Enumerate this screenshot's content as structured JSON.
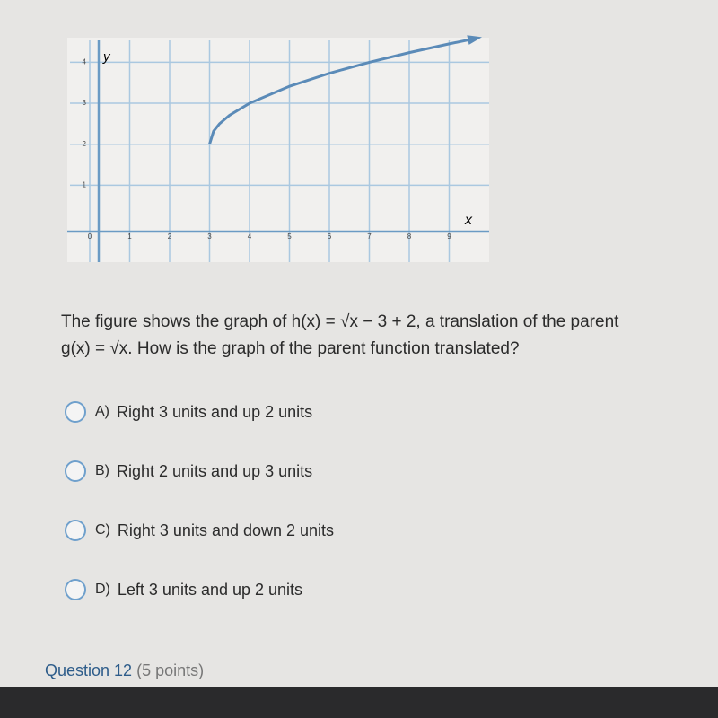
{
  "graph": {
    "x_label": "x",
    "y_label": "y",
    "xlim": [
      0,
      10
    ],
    "ylim": [
      0,
      4.6
    ],
    "xticks": [
      0,
      1,
      2,
      3,
      4,
      5,
      6,
      7,
      8,
      9
    ],
    "yticks": [
      1,
      2,
      3,
      4
    ],
    "curve": {
      "x": [
        3,
        3.1,
        3.25,
        3.5,
        4,
        5,
        6,
        7,
        8,
        9,
        9.6
      ],
      "y": [
        2,
        2.316,
        2.5,
        2.707,
        3,
        3.414,
        3.732,
        4,
        4.236,
        4.449,
        4.569
      ]
    }
  },
  "question": {
    "line1": "The figure shows the graph of h(x) = √x − 3 + 2, a translation of the parent",
    "line2": "g(x) = √x. How is the graph of the parent function translated?"
  },
  "options": [
    {
      "letter": "A)",
      "text": "Right 3 units and up 2 units"
    },
    {
      "letter": "B)",
      "text": "Right 2 units and up 3 units"
    },
    {
      "letter": "C)",
      "text": "Right 3 units and down 2 units"
    },
    {
      "letter": "D)",
      "text": "Left 3 units and up 2 units"
    }
  ],
  "footer": {
    "title": "Question 12",
    "points": "(5 points)"
  }
}
